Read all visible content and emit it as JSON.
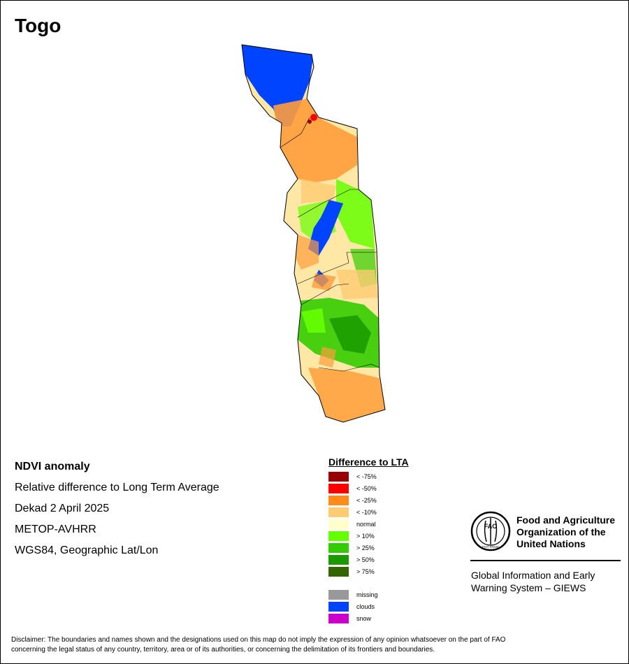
{
  "map": {
    "title": "Togo"
  },
  "info": {
    "title": "NDVI anomaly",
    "line1": "Relative difference to Long Term Average",
    "line2": "Dekad 2 April 2025",
    "line3": "METOP-AVHRR",
    "line4": "WGS84, Geographic Lat/Lon"
  },
  "legend": {
    "title": "Difference to LTA",
    "classes": [
      {
        "label": "< -75%",
        "color": "#990000"
      },
      {
        "label": "< -50%",
        "color": "#ff0000"
      },
      {
        "label": "< -25%",
        "color": "#ff8c1a"
      },
      {
        "label": "< -10%",
        "color": "#ffcc73"
      },
      {
        "label": "normal",
        "color": "#ffffcc"
      },
      {
        "label": "> 10%",
        "color": "#66ff00"
      },
      {
        "label": "> 25%",
        "color": "#33cc00"
      },
      {
        "label": "> 50%",
        "color": "#1a9900"
      },
      {
        "label": "> 75%",
        "color": "#336600"
      }
    ],
    "extras": [
      {
        "label": "missing",
        "color": "#999999"
      },
      {
        "label": "clouds",
        "color": "#0044ff"
      },
      {
        "label": "snow",
        "color": "#cc00cc"
      }
    ]
  },
  "organization": {
    "logo_letters": "FAO",
    "logo_motto": "FIAT PANIS",
    "name_line1": "Food and Agriculture",
    "name_line2": "Organization of the",
    "name_line3": "United Nations",
    "system_line1": "Global Information and Early",
    "system_line2": "Warning System – GIEWS"
  },
  "disclaimer": {
    "line1": "Disclaimer: The boundaries and names shown and the designations used on this map do not imply the expression of any opinion whatsoever on the part of FAO",
    "line2": "concerning the legal status of any country, territory, area or of its authorities, or concerning the delimitation of its frontiers and boundaries."
  }
}
